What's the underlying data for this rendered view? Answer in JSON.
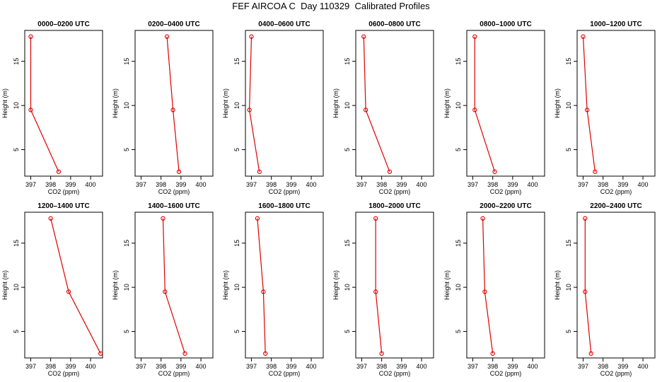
{
  "figure": {
    "title": "FEF AIRCOA C  Day 110329  Calibrated Profiles"
  },
  "colors": {
    "profile": "#dd0000",
    "axis": "#000000",
    "background": "#ffffff"
  },
  "chart_data": [
    {
      "type": "line",
      "title": "0000–0200 UTC",
      "xlabel": "CO2 (ppm)",
      "ylabel": "Height (m)",
      "xlim": [
        396.7,
        400.6
      ],
      "ylim": [
        2.0,
        18.5
      ],
      "xticks": [
        397,
        398,
        399,
        400
      ],
      "yticks": [
        5,
        10,
        15
      ],
      "grid": false,
      "series": [
        {
          "x": [
            398.4,
            397.0,
            397.0
          ],
          "y": [
            2.5,
            9.5,
            17.8
          ]
        }
      ]
    },
    {
      "type": "line",
      "title": "0200–0400 UTC",
      "xlabel": "CO2 (ppm)",
      "ylabel": "Height (m)",
      "xlim": [
        396.7,
        400.6
      ],
      "ylim": [
        2.0,
        18.5
      ],
      "xticks": [
        397,
        398,
        399,
        400
      ],
      "yticks": [
        5,
        10,
        15
      ],
      "grid": false,
      "series": [
        {
          "x": [
            398.9,
            398.6,
            398.3
          ],
          "y": [
            2.5,
            9.5,
            17.8
          ]
        }
      ]
    },
    {
      "type": "line",
      "title": "0400–0600 UTC",
      "xlabel": "CO2 (ppm)",
      "ylabel": "Height (m)",
      "xlim": [
        396.7,
        400.6
      ],
      "ylim": [
        2.0,
        18.5
      ],
      "xticks": [
        397,
        398,
        399,
        400
      ],
      "yticks": [
        5,
        10,
        15
      ],
      "grid": false,
      "series": [
        {
          "x": [
            397.4,
            396.9,
            397.0
          ],
          "y": [
            2.5,
            9.5,
            17.8
          ]
        }
      ]
    },
    {
      "type": "line",
      "title": "0600–0800 UTC",
      "xlabel": "CO2 (ppm)",
      "ylabel": "Height (m)",
      "xlim": [
        396.7,
        400.6
      ],
      "ylim": [
        2.0,
        18.5
      ],
      "xticks": [
        397,
        398,
        399,
        400
      ],
      "yticks": [
        5,
        10,
        15
      ],
      "grid": false,
      "series": [
        {
          "x": [
            398.4,
            397.2,
            397.1
          ],
          "y": [
            2.5,
            9.5,
            17.8
          ]
        }
      ]
    },
    {
      "type": "line",
      "title": "0800–1000 UTC",
      "xlabel": "CO2 (ppm)",
      "ylabel": "Height (m)",
      "xlim": [
        396.7,
        400.6
      ],
      "ylim": [
        2.0,
        18.5
      ],
      "xticks": [
        397,
        398,
        399,
        400
      ],
      "yticks": [
        5,
        10,
        15
      ],
      "grid": false,
      "series": [
        {
          "x": [
            398.1,
            397.1,
            397.1
          ],
          "y": [
            2.5,
            9.5,
            17.8
          ]
        }
      ]
    },
    {
      "type": "line",
      "title": "1000–1200 UTC",
      "xlabel": "CO2 (ppm)",
      "ylabel": "Height (m)",
      "xlim": [
        396.7,
        400.6
      ],
      "ylim": [
        2.0,
        18.5
      ],
      "xticks": [
        397,
        398,
        399,
        400
      ],
      "yticks": [
        5,
        10,
        15
      ],
      "grid": false,
      "series": [
        {
          "x": [
            397.6,
            397.2,
            397.0
          ],
          "y": [
            2.5,
            9.5,
            17.8
          ]
        }
      ]
    },
    {
      "type": "line",
      "title": "1200–1400 UTC",
      "xlabel": "CO2 (ppm)",
      "ylabel": "Height (m)",
      "xlim": [
        396.7,
        400.6
      ],
      "ylim": [
        2.0,
        18.5
      ],
      "xticks": [
        397,
        398,
        399,
        400
      ],
      "yticks": [
        5,
        10,
        15
      ],
      "grid": false,
      "series": [
        {
          "x": [
            400.5,
            398.9,
            398.0
          ],
          "y": [
            2.5,
            9.5,
            17.8
          ]
        }
      ]
    },
    {
      "type": "line",
      "title": "1400–1600 UTC",
      "xlabel": "CO2 (ppm)",
      "ylabel": "Height (m)",
      "xlim": [
        396.7,
        400.6
      ],
      "ylim": [
        2.0,
        18.5
      ],
      "xticks": [
        397,
        398,
        399,
        400
      ],
      "yticks": [
        5,
        10,
        15
      ],
      "grid": false,
      "series": [
        {
          "x": [
            399.2,
            398.2,
            398.1
          ],
          "y": [
            2.5,
            9.5,
            17.8
          ]
        }
      ]
    },
    {
      "type": "line",
      "title": "1600–1800 UTC",
      "xlabel": "CO2 (ppm)",
      "ylabel": "Height (m)",
      "xlim": [
        396.7,
        400.6
      ],
      "ylim": [
        2.0,
        18.5
      ],
      "xticks": [
        397,
        398,
        399,
        400
      ],
      "yticks": [
        5,
        10,
        15
      ],
      "grid": false,
      "series": [
        {
          "x": [
            397.7,
            397.6,
            397.3
          ],
          "y": [
            2.5,
            9.5,
            17.8
          ]
        }
      ]
    },
    {
      "type": "line",
      "title": "1800–2000 UTC",
      "xlabel": "CO2 (ppm)",
      "ylabel": "Height (m)",
      "xlim": [
        396.7,
        400.6
      ],
      "ylim": [
        2.0,
        18.5
      ],
      "xticks": [
        397,
        398,
        399,
        400
      ],
      "yticks": [
        5,
        10,
        15
      ],
      "grid": false,
      "series": [
        {
          "x": [
            398.0,
            397.7,
            397.7
          ],
          "y": [
            2.5,
            9.5,
            17.8
          ]
        }
      ]
    },
    {
      "type": "line",
      "title": "2000–2200 UTC",
      "xlabel": "CO2 (ppm)",
      "ylabel": "Height (m)",
      "xlim": [
        396.7,
        400.6
      ],
      "ylim": [
        2.0,
        18.5
      ],
      "xticks": [
        397,
        398,
        399,
        400
      ],
      "yticks": [
        5,
        10,
        15
      ],
      "grid": false,
      "series": [
        {
          "x": [
            398.0,
            397.6,
            397.5
          ],
          "y": [
            2.5,
            9.5,
            17.8
          ]
        }
      ]
    },
    {
      "type": "line",
      "title": "2200–2400 UTC",
      "xlabel": "CO2 (ppm)",
      "ylabel": "Height (m)",
      "xlim": [
        396.7,
        400.6
      ],
      "ylim": [
        2.0,
        18.5
      ],
      "xticks": [
        397,
        398,
        399,
        400
      ],
      "yticks": [
        5,
        10,
        15
      ],
      "grid": false,
      "series": [
        {
          "x": [
            397.4,
            397.1,
            397.1
          ],
          "y": [
            2.5,
            9.5,
            17.8
          ]
        }
      ]
    }
  ]
}
